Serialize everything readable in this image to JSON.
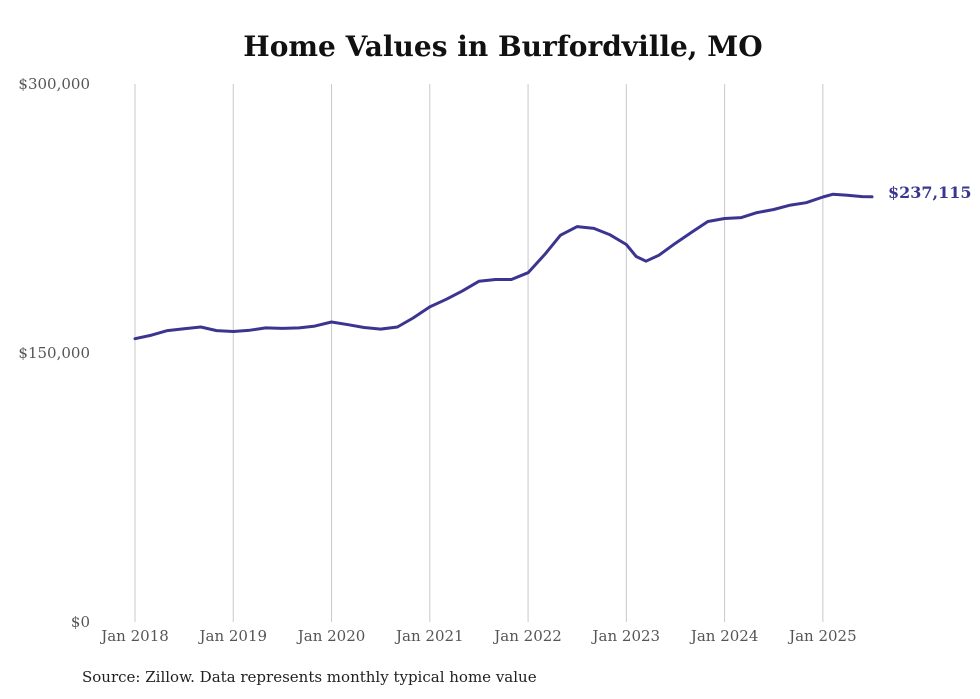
{
  "chart_data": {
    "type": "line",
    "title": "Home Values in Burfordville, MO",
    "xlabel": "",
    "ylabel": "",
    "ylim": [
      0,
      300000
    ],
    "y_ticks": [
      {
        "value": 0,
        "label": "$0"
      },
      {
        "value": 150000,
        "label": "$150,000"
      },
      {
        "value": 300000,
        "label": "$300,000"
      }
    ],
    "x_ticks": [
      {
        "value": 2018.0,
        "label": "Jan 2018"
      },
      {
        "value": 2019.0,
        "label": "Jan 2019"
      },
      {
        "value": 2020.0,
        "label": "Jan 2020"
      },
      {
        "value": 2021.0,
        "label": "Jan 2021"
      },
      {
        "value": 2022.0,
        "label": "Jan 2022"
      },
      {
        "value": 2023.0,
        "label": "Jan 2023"
      },
      {
        "value": 2024.0,
        "label": "Jan 2024"
      },
      {
        "value": 2025.0,
        "label": "Jan 2025"
      }
    ],
    "xlim": [
      2018.0,
      2025.5
    ],
    "grid": "vertical",
    "legend": "none",
    "series": [
      {
        "color": "#3b3590",
        "end_label": "$237,115",
        "points": [
          [
            2018.0,
            158000
          ],
          [
            2018.17,
            160000
          ],
          [
            2018.33,
            162500
          ],
          [
            2018.5,
            163500
          ],
          [
            2018.67,
            164500
          ],
          [
            2018.83,
            162500
          ],
          [
            2019.0,
            162000
          ],
          [
            2019.17,
            162700
          ],
          [
            2019.33,
            164000
          ],
          [
            2019.5,
            163700
          ],
          [
            2019.67,
            164000
          ],
          [
            2019.83,
            165000
          ],
          [
            2020.0,
            167300
          ],
          [
            2020.17,
            165800
          ],
          [
            2020.33,
            164200
          ],
          [
            2020.5,
            163300
          ],
          [
            2020.67,
            164500
          ],
          [
            2020.83,
            169500
          ],
          [
            2021.0,
            175700
          ],
          [
            2021.17,
            180000
          ],
          [
            2021.33,
            184500
          ],
          [
            2021.5,
            190000
          ],
          [
            2021.67,
            191000
          ],
          [
            2021.83,
            191000
          ],
          [
            2022.0,
            194800
          ],
          [
            2022.17,
            205000
          ],
          [
            2022.33,
            215700
          ],
          [
            2022.5,
            220500
          ],
          [
            2022.67,
            219500
          ],
          [
            2022.83,
            216000
          ],
          [
            2023.0,
            210500
          ],
          [
            2023.1,
            203800
          ],
          [
            2023.2,
            201200
          ],
          [
            2023.33,
            204500
          ],
          [
            2023.5,
            211200
          ],
          [
            2023.67,
            217500
          ],
          [
            2023.83,
            223300
          ],
          [
            2024.0,
            225000
          ],
          [
            2024.17,
            225500
          ],
          [
            2024.33,
            228300
          ],
          [
            2024.5,
            230000
          ],
          [
            2024.67,
            232500
          ],
          [
            2024.83,
            233800
          ],
          [
            2025.0,
            237000
          ],
          [
            2025.1,
            238500
          ],
          [
            2025.25,
            238000
          ],
          [
            2025.4,
            237200
          ],
          [
            2025.5,
            237115
          ]
        ]
      }
    ]
  },
  "footer": {
    "source": "Source: Zillow. Data represents monthly typical home value"
  }
}
